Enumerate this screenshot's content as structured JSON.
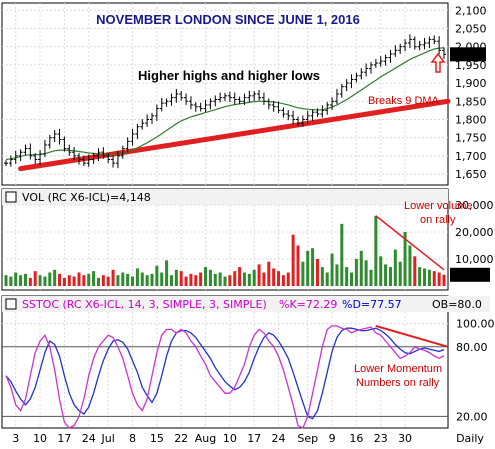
{
  "chart_data": [
    {
      "type": "ohlc",
      "title": "NOVEMBER LONDON SINCE JUNE 1, 2016",
      "annotation_1": "Higher highs and higher lows",
      "annotation_2": "Breaks 9 DMA",
      "last_value": "1979",
      "ylim": [
        1620,
        2120
      ],
      "yticks": [
        "2,100",
        "2,050",
        "2,000",
        "1,950",
        "1,900",
        "1,850",
        "1,800",
        "1,750",
        "1,700",
        "1,650"
      ],
      "ytick_values": [
        2100,
        2050,
        2000,
        1950,
        1900,
        1850,
        1800,
        1750,
        1700,
        1650
      ],
      "x_labels": [
        "3",
        "10",
        "17",
        "24",
        "Jul",
        "8",
        "15",
        "22",
        "Aug",
        "10",
        "17",
        "24",
        "Sep",
        "9",
        "16",
        "23",
        "30",
        "Daily"
      ],
      "closes": [
        1680,
        1690,
        1700,
        1710,
        1720,
        1700,
        1690,
        1705,
        1730,
        1750,
        1760,
        1745,
        1720,
        1710,
        1700,
        1690,
        1680,
        1690,
        1700,
        1710,
        1700,
        1690,
        1680,
        1700,
        1720,
        1740,
        1760,
        1780,
        1790,
        1800,
        1810,
        1830,
        1845,
        1850,
        1860,
        1870,
        1860,
        1850,
        1840,
        1835,
        1830,
        1840,
        1850,
        1855,
        1860,
        1865,
        1860,
        1855,
        1850,
        1860,
        1865,
        1870,
        1860,
        1850,
        1840,
        1835,
        1825,
        1815,
        1810,
        1800,
        1790,
        1800,
        1810,
        1820,
        1815,
        1825,
        1840,
        1850,
        1870,
        1890,
        1900,
        1910,
        1920,
        1930,
        1940,
        1950,
        1955,
        1960,
        1970,
        1980,
        1990,
        2000,
        2010,
        2020,
        2000,
        2005,
        2010,
        2020,
        2015,
        1990,
        1979
      ],
      "ma": [
        1690,
        1692,
        1695,
        1698,
        1702,
        1703,
        1703,
        1704,
        1706,
        1710,
        1714,
        1716,
        1716,
        1715,
        1714,
        1712,
        1710,
        1708,
        1707,
        1706,
        1705,
        1705,
        1704,
        1705,
        1707,
        1711,
        1716,
        1722,
        1729,
        1736,
        1744,
        1752,
        1761,
        1770,
        1779,
        1788,
        1796,
        1802,
        1807,
        1811,
        1815,
        1819,
        1823,
        1827,
        1831,
        1835,
        1838,
        1841,
        1843,
        1845,
        1847,
        1849,
        1850,
        1850,
        1849,
        1848,
        1846,
        1843,
        1840,
        1836,
        1832,
        1830,
        1828,
        1827,
        1826,
        1827,
        1830,
        1834,
        1840,
        1847,
        1855,
        1863,
        1872,
        1881,
        1890,
        1899,
        1908,
        1917,
        1925,
        1933,
        1941,
        1949,
        1957,
        1965,
        1971,
        1977,
        1983,
        1989,
        1994,
        1996,
        1997
      ],
      "series": [
        {
          "name": "",
          "values": []
        }
      ]
    },
    {
      "type": "bar",
      "header": "VOL (RC X6-ICL)=4,148",
      "annotation": "Lower volume on rally",
      "last_value": "4,148",
      "ylim": [
        0,
        30000
      ],
      "yticks": [
        "30,000",
        "20,000",
        "10,000"
      ],
      "ytick_values": [
        30000,
        20000,
        10000
      ],
      "values": [
        4000,
        3500,
        5000,
        4000,
        4500,
        3000,
        5500,
        4000,
        3500,
        5000,
        6000,
        4500,
        3000,
        4000,
        3500,
        5000,
        4000,
        4500,
        5500,
        3000,
        4000,
        3500,
        6000,
        4000,
        5000,
        4500,
        3500,
        6500,
        5000,
        4000,
        4500,
        7500,
        5000,
        9500,
        4000,
        6000,
        5500,
        3500,
        4500,
        4000,
        5000,
        7000,
        6000,
        4500,
        5000,
        3500,
        4000,
        5500,
        7000,
        5000,
        4500,
        6000,
        8000,
        5000,
        9000,
        6500,
        5500,
        4000,
        5000,
        19000,
        15000,
        9000,
        13000,
        14000,
        10000,
        7000,
        5000,
        12000,
        8000,
        23000,
        7000,
        5000,
        10000,
        13000,
        9500,
        6000,
        26000,
        11000,
        8000,
        7000,
        13500,
        9000,
        20000,
        15000,
        11000,
        7000,
        6500,
        6000,
        5500,
        5000,
        4148
      ],
      "series": [
        {
          "name": "",
          "values": []
        }
      ]
    },
    {
      "type": "line",
      "header_1": "SSTOC (RC X6-ICL, 14, 3, SIMPLE, 3, SIMPLE)",
      "header_2": "%K=72.29",
      "header_3": "%D=77.57",
      "header_4": "OB=80.0",
      "annotation": "Lower Momentum Numbers on rally",
      "ylim": [
        10,
        110
      ],
      "yticks": [
        "100.00",
        "80.00",
        "20.00"
      ],
      "ytick_values": [
        100,
        80,
        20
      ],
      "k": [
        55,
        45,
        30,
        25,
        35,
        55,
        75,
        85,
        90,
        80,
        60,
        35,
        15,
        10,
        12,
        20,
        35,
        55,
        70,
        80,
        85,
        90,
        88,
        80,
        70,
        55,
        40,
        30,
        25,
        35,
        55,
        75,
        90,
        95,
        95,
        92,
        95,
        92,
        85,
        80,
        72,
        65,
        55,
        50,
        45,
        40,
        40,
        45,
        55,
        65,
        80,
        90,
        95,
        92,
        85,
        80,
        72,
        60,
        45,
        30,
        12,
        10,
        20,
        40,
        60,
        80,
        95,
        98,
        98,
        96,
        95,
        92,
        94,
        95,
        96,
        97,
        92,
        90,
        85,
        80,
        75,
        70,
        72,
        75,
        80,
        78,
        77,
        75,
        72,
        70,
        72.29
      ],
      "d": [
        55,
        50,
        42,
        35,
        30,
        35,
        45,
        60,
        75,
        85,
        82,
        72,
        55,
        40,
        30,
        25,
        22,
        28,
        40,
        55,
        68,
        78,
        85,
        86,
        84,
        78,
        68,
        58,
        45,
        38,
        32,
        40,
        55,
        72,
        85,
        92,
        94,
        94,
        92,
        88,
        82,
        76,
        70,
        62,
        56,
        50,
        46,
        43,
        45,
        50,
        58,
        70,
        80,
        88,
        92,
        90,
        85,
        78,
        70,
        58,
        45,
        32,
        20,
        18,
        25,
        40,
        58,
        76,
        88,
        94,
        96,
        96,
        95,
        94,
        94,
        95,
        96,
        94,
        91,
        87,
        82,
        78,
        75,
        74,
        76,
        78,
        79,
        78,
        77,
        76,
        77.57
      ],
      "series": [
        {
          "name": "%K",
          "values": []
        },
        {
          "name": "%D",
          "values": []
        }
      ]
    }
  ]
}
